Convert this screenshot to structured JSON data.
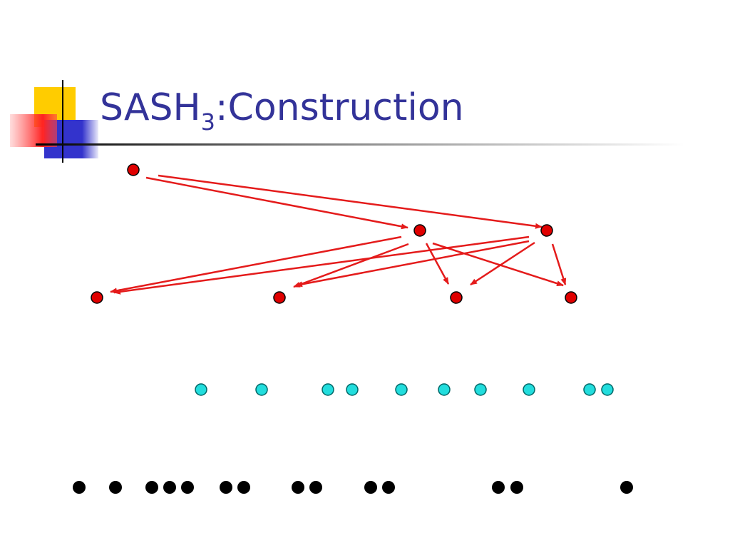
{
  "slide": {
    "title": {
      "main": "SASH",
      "subscript": "3",
      "rest": ":Construction"
    }
  }
}
